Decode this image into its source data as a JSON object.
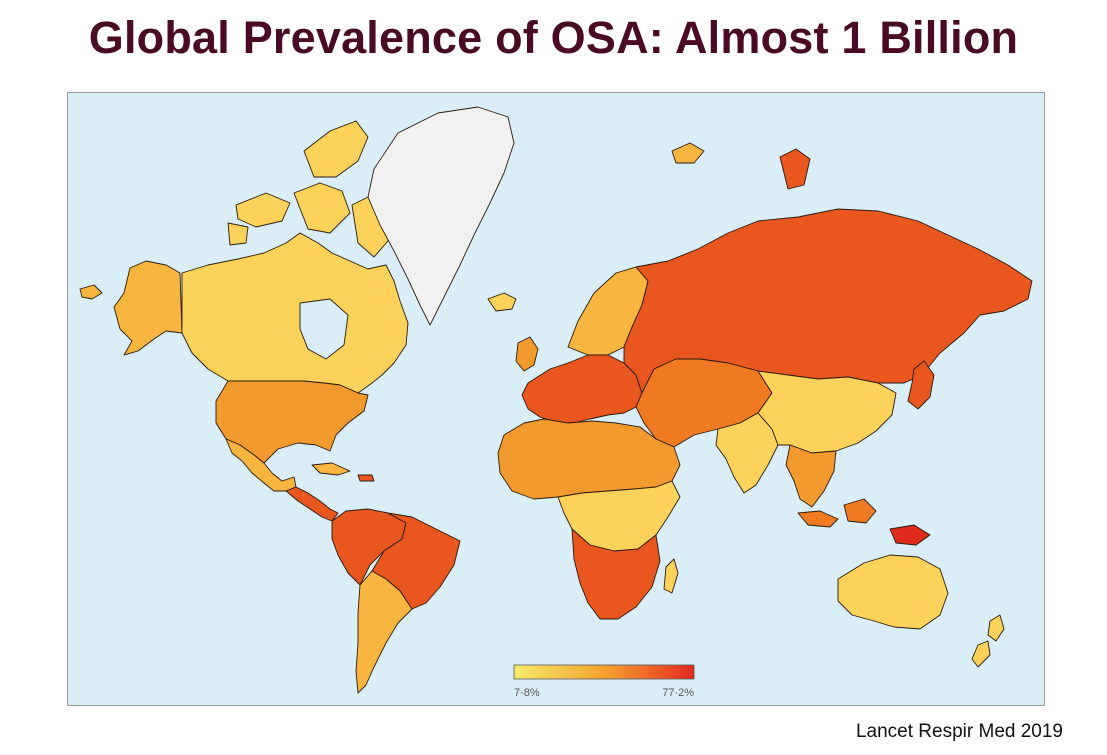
{
  "title": "Global Prevalence of OSA: Almost 1 Billion",
  "citation": "Lancet Respir Med 2019",
  "legend": {
    "min_label": "7·8%",
    "max_label": "77·2%",
    "min_color": "#f7ea6a",
    "max_color": "#e42a1f"
  },
  "colors": {
    "ocean": "#d9eef6",
    "no_data": "#f1f1f1",
    "low": "#fcd25a",
    "low_mid": "#f8b640",
    "mid": "#f39a2e",
    "mid_high": "#ef7a22",
    "high": "#e9561e",
    "very_high": "#df2a1e"
  },
  "regions": [
    {
      "name": "north-america-canada",
      "level": "low"
    },
    {
      "name": "alaska",
      "level": "low_mid"
    },
    {
      "name": "united-states",
      "level": "mid"
    },
    {
      "name": "mexico",
      "level": "low_mid"
    },
    {
      "name": "central-america",
      "level": "high"
    },
    {
      "name": "greenland",
      "level": "no_data"
    },
    {
      "name": "south-america-north",
      "level": "high"
    },
    {
      "name": "brazil",
      "level": "high"
    },
    {
      "name": "south-america-south",
      "level": "low_mid"
    },
    {
      "name": "europe-west",
      "level": "high"
    },
    {
      "name": "scandinavia",
      "level": "low_mid"
    },
    {
      "name": "russia",
      "level": "high"
    },
    {
      "name": "africa-north",
      "level": "mid"
    },
    {
      "name": "africa-central",
      "level": "low"
    },
    {
      "name": "africa-south",
      "level": "high"
    },
    {
      "name": "middle-east",
      "level": "mid_high"
    },
    {
      "name": "india",
      "level": "low"
    },
    {
      "name": "china",
      "level": "low"
    },
    {
      "name": "southeast-asia",
      "level": "mid"
    },
    {
      "name": "indonesia",
      "level": "mid_high"
    },
    {
      "name": "australia",
      "level": "low"
    },
    {
      "name": "new-zealand",
      "level": "low"
    },
    {
      "name": "japan",
      "level": "high"
    },
    {
      "name": "madagascar",
      "level": "low"
    },
    {
      "name": "iceland",
      "level": "low"
    },
    {
      "name": "uk",
      "level": "mid"
    },
    {
      "name": "svalbard",
      "level": "high"
    }
  ]
}
